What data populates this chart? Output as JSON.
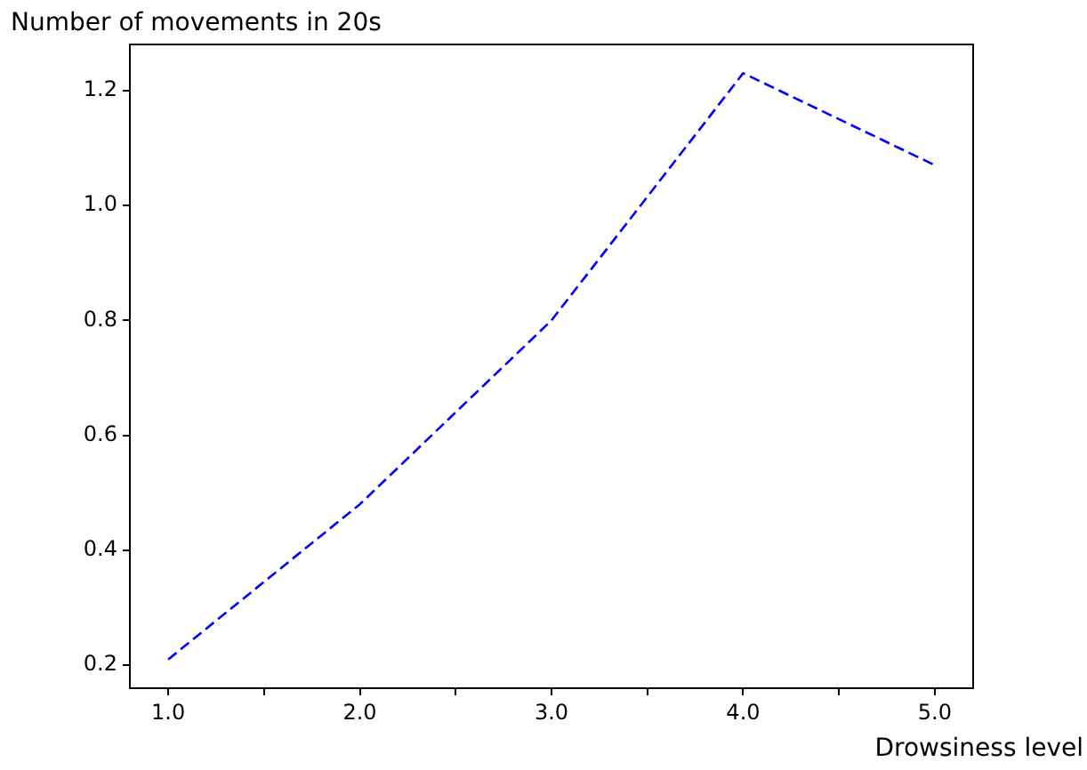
{
  "chart_data": {
    "type": "line",
    "xlabel": "Drowsiness level",
    "ylabel": "Number of movements in 20s",
    "x": [
      1,
      2,
      3,
      4,
      5
    ],
    "series": [
      {
        "color": "#0000ff",
        "values": [
          0.21,
          0.48,
          0.8,
          1.23,
          1.07
        ]
      }
    ],
    "xlim": [
      0.8,
      5.2
    ],
    "xticks": [
      {
        "value": 1,
        "label": "1.0"
      },
      {
        "value": 1.5,
        "label": null
      },
      {
        "value": 2,
        "label": "2.0"
      },
      {
        "value": 2.5,
        "label": null
      },
      {
        "value": 3,
        "label": "3.0"
      },
      {
        "value": 3.5,
        "label": null
      },
      {
        "value": 4,
        "label": "4.0"
      },
      {
        "value": 4.5,
        "label": null
      },
      {
        "value": 5,
        "label": "5.0"
      }
    ],
    "ylim": [
      0.16,
      1.28
    ],
    "yticks": [
      0.2,
      0.4,
      0.6,
      0.8,
      {
        "value": 1,
        "label": "1.0"
      },
      1.2
    ],
    "grid": false,
    "legend": false,
    "marker": "none",
    "line_style": "dashed"
  }
}
